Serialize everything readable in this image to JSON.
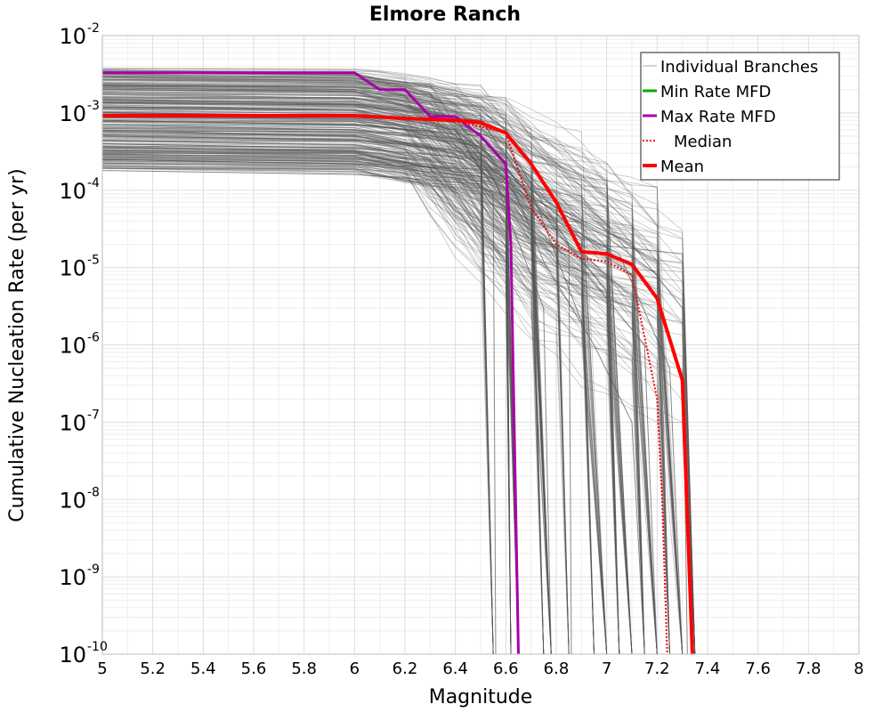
{
  "chart_data": {
    "type": "line",
    "title": "Elmore Ranch",
    "xlabel": "Magnitude",
    "ylabel": "Cumulative Nucleation Rate (per yr)",
    "xlim": [
      5,
      8
    ],
    "ylim": [
      1e-10,
      0.01
    ],
    "yscale": "log",
    "grid": true,
    "x_ticks": [
      "5",
      "5.2",
      "5.4",
      "5.6",
      "5.8",
      "6",
      "6.2",
      "6.4",
      "6.6",
      "6.8",
      "7",
      "7.2",
      "7.4",
      "7.6",
      "7.8",
      "8"
    ],
    "y_ticks": [
      {
        "base": "10",
        "exp": "-10"
      },
      {
        "base": "10",
        "exp": "-9"
      },
      {
        "base": "10",
        "exp": "-8"
      },
      {
        "base": "10",
        "exp": "-7"
      },
      {
        "base": "10",
        "exp": "-6"
      },
      {
        "base": "10",
        "exp": "-5"
      },
      {
        "base": "10",
        "exp": "-4"
      },
      {
        "base": "10",
        "exp": "-3"
      },
      {
        "base": "10",
        "exp": "-2"
      }
    ],
    "legend_position": "top-right",
    "series": [
      {
        "name": "Individual Branches",
        "color": "#555555",
        "style": "thin",
        "note": "hundreds of logic-tree branches",
        "representative": [
          {
            "x": [
              5,
              6,
              6.5,
              6.55,
              6.56
            ],
            "y": [
              0.0003,
              0.0003,
              0.00015,
              9e-05,
              1e-10
            ]
          },
          {
            "x": [
              5,
              6,
              6.3,
              6.6,
              6.85,
              6.86
            ],
            "y": [
              0.002,
              0.0019,
              0.001,
              0.0004,
              2e-05,
              1e-10
            ]
          },
          {
            "x": [
              5,
              6,
              6.4,
              6.6,
              6.8,
              7.0,
              7.05
            ],
            "y": [
              0.0012,
              0.0011,
              0.0006,
              0.0002,
              3e-05,
              5e-06,
              1e-10
            ]
          },
          {
            "x": [
              5,
              6,
              6.5,
              6.7,
              7.0,
              7.2,
              7.25
            ],
            "y": [
              0.0008,
              0.0007,
              0.0005,
              8e-05,
              2.5e-05,
              8e-06,
              1e-10
            ]
          },
          {
            "x": [
              5,
              6,
              6.5,
              6.8,
              7.1,
              7.3,
              7.32
            ],
            "y": [
              0.0005,
              0.00045,
              0.0003,
              6e-05,
              2e-05,
              3e-06,
              1e-10
            ]
          },
          {
            "x": [
              5,
              6,
              6.6,
              6.75,
              6.95,
              7.1,
              7.15
            ],
            "y": [
              0.00025,
              0.00022,
              0.00018,
              1.2e-05,
              1e-06,
              1e-07,
              1e-10
            ]
          },
          {
            "x": [
              5,
              6,
              6.5,
              6.7,
              6.9,
              7.0
            ],
            "y": [
              0.0015,
              0.0013,
              0.0008,
              0.0001,
              2e-06,
              1e-10
            ]
          },
          {
            "x": [
              5,
              6,
              6.4,
              6.62,
              6.65
            ],
            "y": [
              0.0006,
              0.0005,
              0.0003,
              3e-05,
              1e-10
            ]
          },
          {
            "x": [
              5,
              6,
              6.5,
              6.8,
              7.05,
              7.25,
              7.3
            ],
            "y": [
              0.0004,
              0.00035,
              0.00025,
              4e-05,
              1.5e-05,
              5e-07,
              1e-10
            ]
          },
          {
            "x": [
              5,
              6,
              6.3,
              6.55,
              6.75,
              6.78
            ],
            "y": [
              0.001,
              0.0009,
              0.0006,
              0.00015,
              3e-06,
              1e-10
            ]
          },
          {
            "x": [
              5,
              6,
              6.5,
              6.65,
              6.9,
              7.15,
              7.2
            ],
            "y": [
              0.00018,
              0.00016,
              0.00012,
              4e-05,
              1e-05,
              1e-06,
              1e-10
            ]
          },
          {
            "x": [
              5,
              6,
              6.45,
              6.7,
              6.95,
              7.3,
              7.35
            ],
            "y": [
              0.0007,
              0.0006,
              0.0004,
              9e-05,
              2e-05,
              1.5e-05,
              1e-10
            ]
          }
        ]
      },
      {
        "name": "Min Rate MFD",
        "color": "#00aa00",
        "x": [],
        "y": []
      },
      {
        "name": "Max Rate MFD",
        "color": "#aa00aa",
        "x": [
          5.0,
          6.0,
          6.1,
          6.2,
          6.3,
          6.4,
          6.5,
          6.6,
          6.62,
          6.65
        ],
        "y": [
          0.0033,
          0.0033,
          0.002,
          0.002,
          0.0009,
          0.0009,
          0.0005,
          0.00022,
          2e-05,
          1e-10
        ]
      },
      {
        "name": "Median",
        "color": "#ff0000",
        "x": [
          5.0,
          6.0,
          6.2,
          6.4,
          6.6,
          6.7,
          6.8,
          6.9,
          7.0,
          7.1,
          7.2,
          7.22,
          7.24
        ],
        "y": [
          0.0009,
          0.0009,
          0.00085,
          0.0008,
          0.00055,
          6e-05,
          2e-05,
          1.3e-05,
          1.2e-05,
          8e-06,
          2e-07,
          1e-08,
          1e-10
        ]
      },
      {
        "name": "Mean",
        "color": "#ff0000",
        "x": [
          5.0,
          6.0,
          6.2,
          6.4,
          6.5,
          6.6,
          6.7,
          6.8,
          6.9,
          7.0,
          7.1,
          7.2,
          7.3,
          7.34
        ],
        "y": [
          0.00092,
          0.00092,
          0.00085,
          0.0008,
          0.00075,
          0.00055,
          0.00022,
          7e-05,
          1.6e-05,
          1.5e-05,
          1.1e-05,
          4e-06,
          3.5e-07,
          1e-10
        ]
      }
    ]
  }
}
